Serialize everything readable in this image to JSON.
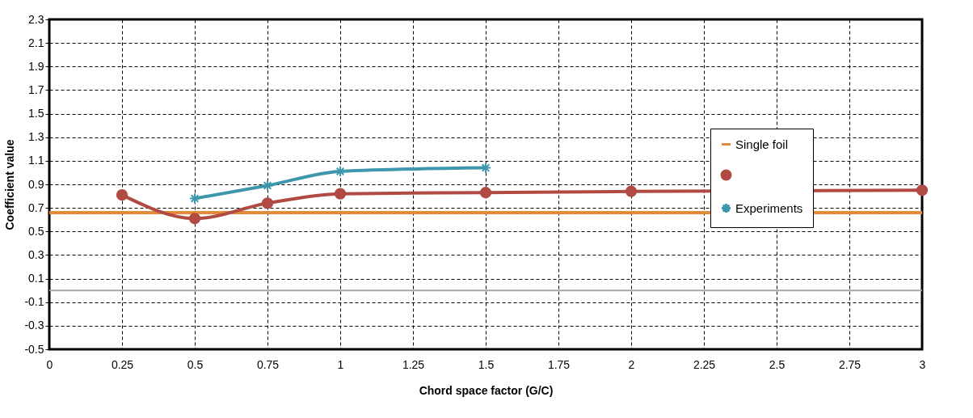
{
  "chart_data": {
    "type": "line",
    "xlabel": "Chord space factor (G/C)",
    "ylabel": "Coefficient value",
    "xlim": [
      0,
      3
    ],
    "xticks": [
      0,
      0.25,
      0.5,
      0.75,
      1,
      1.25,
      1.5,
      1.75,
      2,
      2.25,
      2.5,
      2.75,
      3
    ],
    "ylim": [
      -0.5,
      2.3
    ],
    "yticks": [
      -0.5,
      -0.3,
      -0.1,
      0.1,
      0.3,
      0.5,
      0.7,
      0.9,
      1.1,
      1.3,
      1.5,
      1.7,
      1.9,
      2.1,
      2.3
    ],
    "grid": true,
    "legend": "top right",
    "line_style": "solid",
    "ref_lines": [
      {
        "axis": "y",
        "value": 0,
        "color": "#a6a6a6"
      }
    ],
    "series": [
      {
        "name": "Single foil",
        "color": "#e38b3a",
        "marker": "none",
        "x": [
          0,
          3
        ],
        "values": [
          0.66,
          0.66
        ]
      },
      {
        "color": "#b04a43",
        "marker": "circle",
        "x": [
          0.25,
          0.5,
          0.75,
          1,
          1.5,
          2,
          3
        ],
        "values": [
          0.81,
          0.61,
          0.74,
          0.82,
          0.83,
          0.84,
          0.85
        ]
      },
      {
        "name": "Experiments",
        "color": "#3f97ad",
        "marker": "cross",
        "x": [
          0.5,
          0.75,
          1,
          1.5
        ],
        "values": [
          0.78,
          0.89,
          1.01,
          1.04
        ]
      }
    ]
  }
}
